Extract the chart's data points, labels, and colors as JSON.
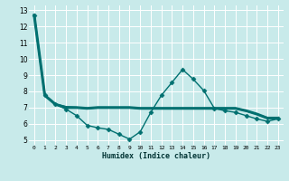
{
  "title": "",
  "xlabel": "Humidex (Indice chaleur)",
  "background_color": "#c8eaea",
  "grid_color": "#ffffff",
  "line_color": "#007070",
  "xlim": [
    -0.5,
    23.5
  ],
  "ylim": [
    4.7,
    13.3
  ],
  "yticks": [
    5,
    6,
    7,
    8,
    9,
    10,
    11,
    12,
    13
  ],
  "xticks": [
    0,
    1,
    2,
    3,
    4,
    5,
    6,
    7,
    8,
    9,
    10,
    11,
    12,
    13,
    14,
    15,
    16,
    17,
    18,
    19,
    20,
    21,
    22,
    23
  ],
  "series": [
    {
      "x": [
        0,
        1,
        2,
        3,
        4,
        5,
        6,
        7,
        8,
        9,
        10,
        11,
        12,
        13,
        14,
        15,
        16,
        17,
        18,
        19,
        20,
        21,
        22,
        23
      ],
      "y": [
        12.7,
        7.75,
        7.2,
        7.0,
        7.0,
        6.95,
        7.0,
        7.0,
        7.0,
        7.0,
        6.95,
        6.95,
        6.95,
        6.95,
        6.95,
        6.95,
        6.95,
        6.95,
        6.95,
        6.95,
        6.8,
        6.6,
        6.35,
        6.35
      ],
      "marker": null,
      "linewidth": 2.2
    },
    {
      "x": [
        0,
        1,
        2,
        3,
        4,
        5,
        6,
        7,
        8,
        9,
        10,
        11,
        12,
        13,
        14,
        15,
        16,
        17,
        18,
        19,
        20,
        21,
        22,
        23
      ],
      "y": [
        12.7,
        7.75,
        7.2,
        6.9,
        6.5,
        5.9,
        5.75,
        5.65,
        5.35,
        5.05,
        5.5,
        6.7,
        7.75,
        8.55,
        9.35,
        8.75,
        8.05,
        6.95,
        6.8,
        6.7,
        6.5,
        6.3,
        6.15,
        6.3
      ],
      "marker": "D",
      "markersize": 2.5,
      "linewidth": 1.0
    },
    {
      "x": [
        0,
        1,
        2,
        3,
        4,
        5,
        6,
        7,
        8,
        9,
        10,
        11,
        12,
        13,
        14,
        15,
        16,
        17,
        18,
        19,
        20,
        21,
        22,
        23
      ],
      "y": [
        12.7,
        7.75,
        7.2,
        7.05,
        7.0,
        6.95,
        7.0,
        7.0,
        7.0,
        7.0,
        6.95,
        6.95,
        6.95,
        6.95,
        6.95,
        6.95,
        6.95,
        6.95,
        6.95,
        6.95,
        6.8,
        6.6,
        6.35,
        6.35
      ],
      "marker": null,
      "linewidth": 1.3
    }
  ]
}
